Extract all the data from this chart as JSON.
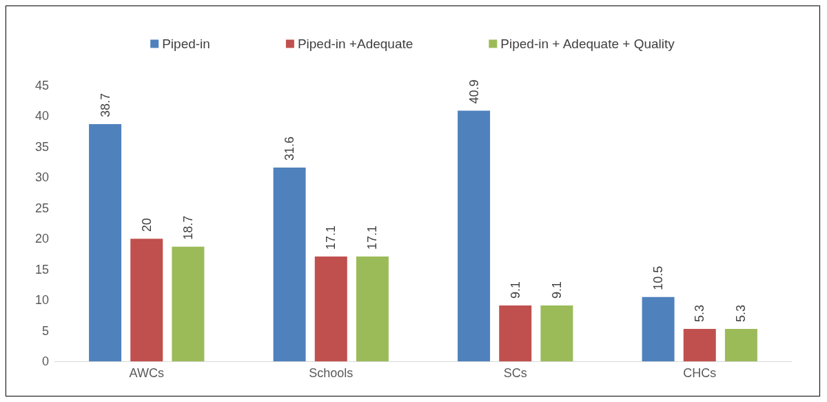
{
  "chart_data": {
    "type": "bar",
    "categories": [
      "AWCs",
      "Schools",
      "SCs",
      "CHCs"
    ],
    "series": [
      {
        "name": "Piped-in",
        "color": "#4f81bd",
        "values": [
          38.7,
          31.6,
          40.9,
          10.5
        ]
      },
      {
        "name": "Piped-in +Adequate",
        "color": "#c0504d",
        "values": [
          20,
          17.1,
          9.1,
          5.3
        ]
      },
      {
        "name": "Piped-in + Adequate + Quality",
        "color": "#9bbb59",
        "values": [
          18.7,
          17.1,
          9.1,
          5.3
        ]
      }
    ],
    "ylim": [
      0,
      45
    ],
    "yticks": [
      0,
      5,
      10,
      15,
      20,
      25,
      30,
      35,
      40,
      45
    ],
    "grid": false,
    "legend": "top",
    "data_labels": true
  }
}
